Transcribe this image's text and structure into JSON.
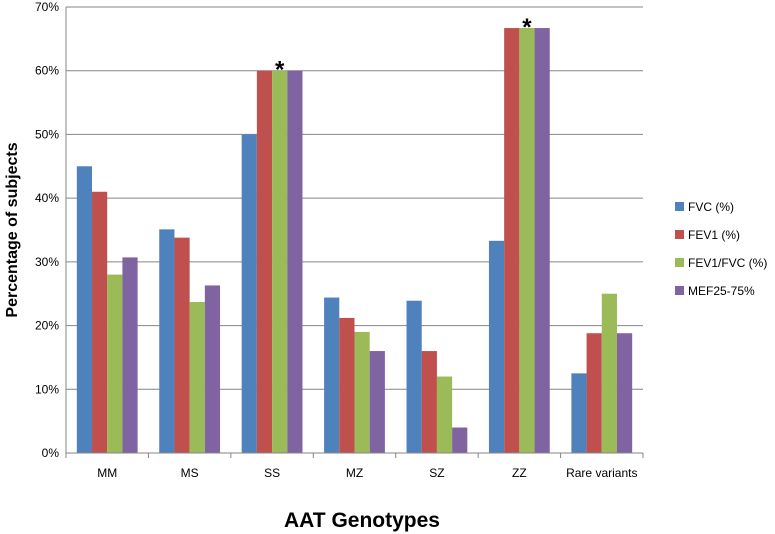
{
  "chart_data": {
    "type": "bar",
    "xlabel": "AAT Genotypes",
    "ylabel": "Percentage of subjects",
    "ylim": [
      0,
      70
    ],
    "yticks": [
      0,
      10,
      20,
      30,
      40,
      50,
      60,
      70
    ],
    "ytick_labels": [
      "0%",
      "10%",
      "20%",
      "30%",
      "40%",
      "50%",
      "60%",
      "70%"
    ],
    "grid": true,
    "legend_position": "right",
    "categories": [
      "MM",
      "MS",
      "SS",
      "MZ",
      "SZ",
      "ZZ",
      "Rare variants"
    ],
    "series": [
      {
        "name": "FVC (%)",
        "color": "#4f81bd",
        "values": [
          45,
          35.1,
          50,
          24.4,
          23.9,
          33.3,
          12.5
        ]
      },
      {
        "name": "FEV1 (%)",
        "color": "#c0504d",
        "values": [
          41,
          33.8,
          60,
          21.2,
          16,
          66.7,
          18.8
        ]
      },
      {
        "name": "FEV1/FVC (%)",
        "color": "#9bbb59",
        "values": [
          28,
          23.7,
          60,
          19,
          12,
          66.7,
          25
        ]
      },
      {
        "name": "MEF25-75%",
        "color": "#8064a2",
        "values": [
          30.7,
          26.3,
          60,
          16,
          4,
          66.7,
          18.8
        ]
      }
    ],
    "annotations": [
      {
        "text": "*",
        "category": "SS",
        "series": "FEV1/FVC (%)"
      },
      {
        "text": "*",
        "category": "ZZ",
        "series": "FEV1/FVC (%)"
      }
    ]
  }
}
